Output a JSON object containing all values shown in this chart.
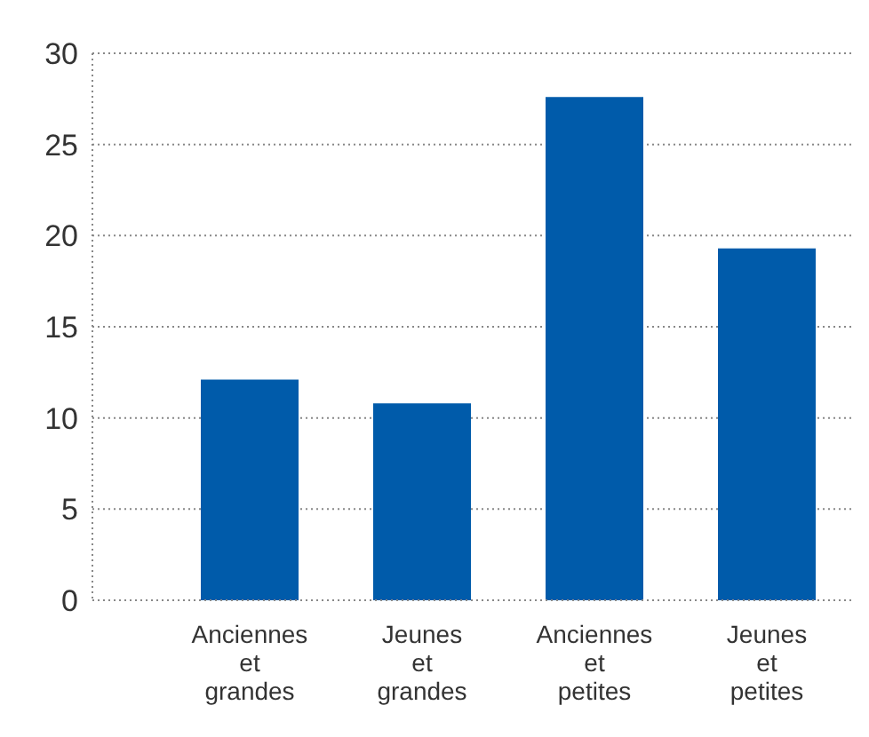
{
  "chart_data": {
    "type": "bar",
    "categories": [
      "Anciennes et grandes",
      "Jeunes et grandes",
      "Anciennes et petites",
      "Jeunes et petites"
    ],
    "values": [
      12.1,
      10.8,
      27.6,
      19.3
    ],
    "color": "#005baa",
    "ylim": [
      0,
      30
    ],
    "yticks": [
      0,
      5,
      10,
      15,
      20,
      25,
      30
    ],
    "grid": "y"
  }
}
